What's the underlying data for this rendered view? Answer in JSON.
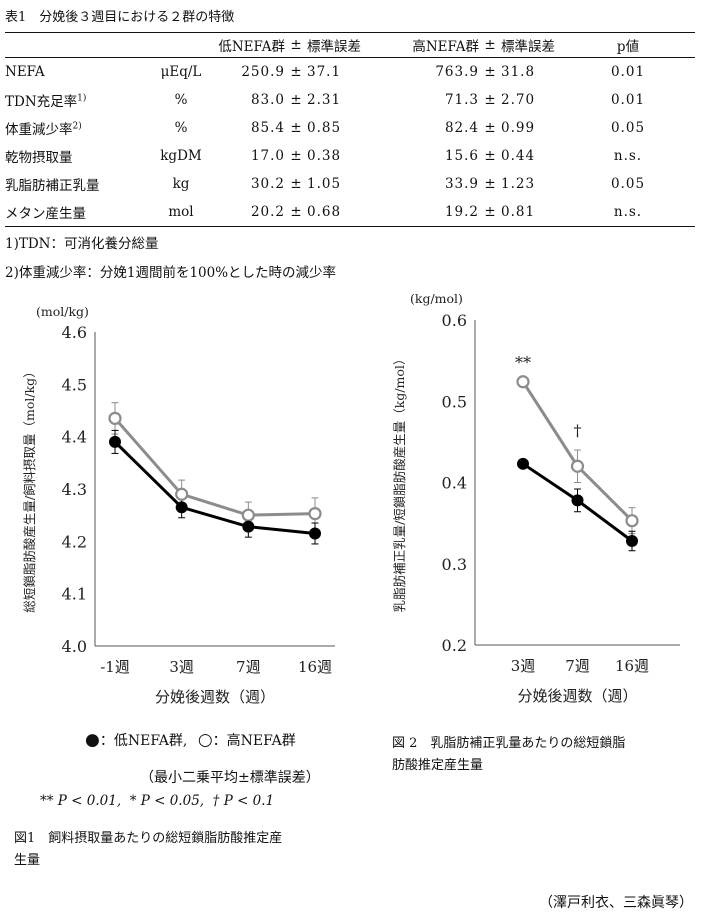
{
  "table": {
    "caption": "表1　分娩後３週目における２群の特徴",
    "headers": [
      "",
      "",
      "低NEFA群",
      "±",
      "標準誤差",
      "高NEFA群",
      "±",
      "標準誤差",
      "p値"
    ],
    "rows": [
      {
        "item": "NEFA",
        "unit": "μEq/L",
        "low_mean": "250.9",
        "pm1": "±",
        "low_se": "37.1",
        "high_mean": "763.9",
        "pm2": "±",
        "high_se": "31.8",
        "p": "0.01"
      },
      {
        "item": "TDN充足率",
        "sup": "1)",
        "unit": "%",
        "low_mean": "83.0",
        "pm1": "±",
        "low_se": "2.31",
        "high_mean": "71.3",
        "pm2": "±",
        "high_se": "2.70",
        "p": "0.01"
      },
      {
        "item": "体重減少率",
        "sup": "2)",
        "unit": "%",
        "low_mean": "85.4",
        "pm1": "±",
        "low_se": "0.85",
        "high_mean": "82.4",
        "pm2": "±",
        "high_se": "0.99",
        "p": "0.05"
      },
      {
        "item": "乾物摂取量",
        "unit": "kgDM",
        "low_mean": "17.0",
        "pm1": "±",
        "low_se": "0.38",
        "high_mean": "15.6",
        "pm2": "±",
        "high_se": "0.44",
        "p": "n.s."
      },
      {
        "item": "乳脂肪補正乳量",
        "unit": "kg",
        "low_mean": "30.2",
        "pm1": "±",
        "low_se": "1.05",
        "high_mean": "33.9",
        "pm2": "±",
        "high_se": "1.23",
        "p": "0.05"
      },
      {
        "item": "メタン産生量",
        "unit": "mol",
        "low_mean": "20.2",
        "pm1": "±",
        "low_se": "0.68",
        "high_mean": "19.2",
        "pm2": "±",
        "high_se": "0.81",
        "p": "n.s."
      }
    ],
    "notes": [
      "1)TDN：可消化養分総量",
      "2)体重減少率：分娩1週間前を100%とした時の減少率"
    ]
  },
  "legend": {
    "low_symbol": "●",
    "low_text": "：低NEFA群,",
    "high_symbol": "○",
    "high_text": "：高NEFA群",
    "lsmean_note": "（最小二乗平均±標準誤差）",
    "sig_note": "** P < 0.01,  * P < 0.05,  † P < 0.1"
  },
  "figure1_caption_line1": "図1　飼料摂取量あたりの総短鎖脂肪酸推定産",
  "figure1_caption_line2": "生量",
  "figure2_caption_line1": "図 2　乳脂肪補正乳量あたりの総短鎖脂",
  "figure2_caption_line2": "肪酸推定産生量",
  "author": "（澤戸利衣、三森眞琴）",
  "colors": {
    "low": "#000000",
    "high": "#8c8c8c",
    "axis": "#555555"
  },
  "chart_data": [
    {
      "type": "line",
      "title": "図1　飼料摂取量あたりの総短鎖脂肪酸推定産生量",
      "unit_label": "(mol/kg)",
      "ylabel": "総短鎖脂肪酸産生量/飼料摂取量（mol/kg）",
      "xlabel": "分娩後週数（週）",
      "categories": [
        "-1週",
        "3週",
        "7週",
        "16週"
      ],
      "ylim": [
        4.0,
        4.6
      ],
      "yticks": [
        "4.0",
        "4.1",
        "4.2",
        "4.3",
        "4.4",
        "4.5",
        "4.6"
      ],
      "series": [
        {
          "name": "低NEFA群",
          "marker": "filled",
          "values": [
            4.39,
            4.265,
            4.228,
            4.215
          ],
          "errors": [
            0.022,
            0.02,
            0.02,
            0.02
          ]
        },
        {
          "name": "高NEFA群",
          "marker": "open",
          "values": [
            4.435,
            4.29,
            4.25,
            4.253
          ],
          "errors": [
            0.03,
            0.027,
            0.025,
            0.03
          ]
        }
      ],
      "annotations": []
    },
    {
      "type": "line",
      "title": "図2　乳脂肪補正乳量あたりの総短鎖脂肪酸推定産生量",
      "unit_label": "(kg/mol)",
      "ylabel": "乳脂肪補正乳量/短鎖脂肪酸産生量（kg/mol）",
      "xlabel": "分娩後週数（週）",
      "categories": [
        "3週",
        "7週",
        "16週"
      ],
      "ylim": [
        0.2,
        0.6
      ],
      "yticks": [
        "0.2",
        "0.3",
        "0.4",
        "0.5",
        "0.6"
      ],
      "series": [
        {
          "name": "低NEFA群",
          "marker": "filled",
          "values": [
            0.423,
            0.378,
            0.328
          ],
          "errors": [
            0.0,
            0.014,
            0.012
          ]
        },
        {
          "name": "高NEFA群",
          "marker": "open",
          "values": [
            0.524,
            0.42,
            0.353
          ],
          "errors": [
            0.0,
            0.02,
            0.016
          ]
        }
      ],
      "annotations": [
        {
          "category": "3週",
          "text": "**"
        },
        {
          "category": "7週",
          "text": "†"
        }
      ]
    }
  ]
}
